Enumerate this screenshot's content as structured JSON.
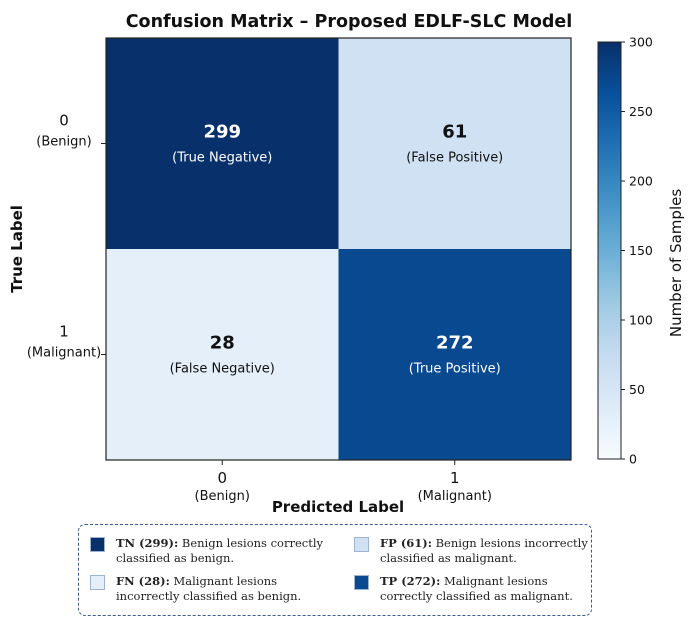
{
  "colors": {
    "max": "#08306b",
    "mid": "#2171b5",
    "low": "#c6dbef",
    "min": "#f7fbff",
    "frame": "#222222",
    "legend_border": "#3a5a92"
  },
  "chart_data": {
    "type": "heatmap",
    "title": "Confusion Matrix – Proposed EDLF-SLC Model",
    "xlabel": "Predicted Label",
    "ylabel": "True Label",
    "x_ticks": [
      {
        "value": "0",
        "name": "(Benign)"
      },
      {
        "value": "1",
        "name": "(Malignant)"
      }
    ],
    "y_ticks": [
      {
        "value": "0",
        "name": "(Benign)"
      },
      {
        "value": "1",
        "name": "(Malignant)"
      }
    ],
    "cells": [
      [
        {
          "value": 299,
          "label": "(True Negative)"
        },
        {
          "value": 61,
          "label": "(False Positive)"
        }
      ],
      [
        {
          "value": 28,
          "label": "(False Negative)"
        },
        {
          "value": 272,
          "label": "(True Positive)"
        }
      ]
    ],
    "colorbar": {
      "label": "Number of Samples",
      "range": [
        0,
        300
      ],
      "ticks": [
        0,
        50,
        100,
        150,
        200,
        250,
        300
      ],
      "colormap": "Blues"
    }
  },
  "legend": {
    "items": [
      {
        "abbr": "TN (299):",
        "text": "Benign lesions correctly classified as benign.",
        "value": 299
      },
      {
        "abbr": "FP (61):",
        "text": "Benign lesions incorrectly classified as malignant.",
        "value": 61
      },
      {
        "abbr": "FN (28):",
        "text": "Malignant lesions incorrectly classified as benign.",
        "value": 28
      },
      {
        "abbr": "TP (272):",
        "text": "Malignant lesions correctly classified as malignant.",
        "value": 272
      }
    ]
  }
}
